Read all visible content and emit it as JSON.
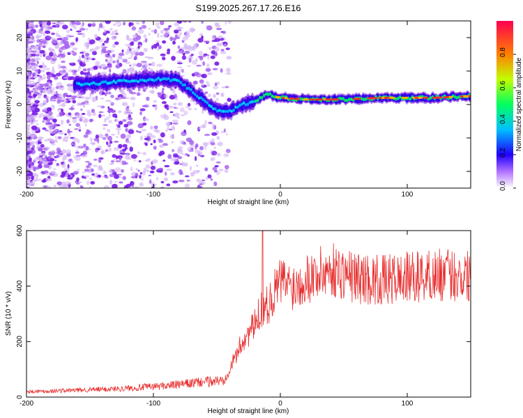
{
  "title": "S199.2025.267.17.26.E16",
  "chart_data": [
    {
      "type": "heatmap",
      "xlabel": "Height of straight line (km)",
      "ylabel": "Frequency (Hz)",
      "xlim": [
        -200,
        150
      ],
      "ylim": [
        -25,
        25
      ],
      "x_ticks": [
        -200,
        -100,
        0,
        100
      ],
      "y_ticks": [
        20,
        10,
        0,
        -10,
        -20
      ],
      "colorbar": {
        "label": "Normalized spectral amplitude",
        "range": [
          0,
          1
        ],
        "ticks": [
          "0.0",
          "0.2",
          "0.4",
          "0.6",
          "0.8"
        ],
        "tick_values": [
          0,
          0.2,
          0.4,
          0.6,
          0.8
        ]
      },
      "ridge_frequency": {
        "x": [
          -160,
          -140,
          -120,
          -100,
          -90,
          -80,
          -70,
          -60,
          -50,
          -40,
          -30,
          -20,
          -10,
          0,
          20,
          50,
          80,
          100,
          120,
          150
        ],
        "y": [
          6,
          6.5,
          7,
          7.5,
          7.5,
          7,
          4,
          1,
          -2,
          -2,
          0,
          1,
          3,
          2,
          1.5,
          1.5,
          2,
          2,
          2,
          2.5
        ]
      }
    },
    {
      "type": "line",
      "xlabel": "Height of straight line (km)",
      "ylabel": "SNR (10 * v/v)",
      "xlim": [
        -200,
        150
      ],
      "ylim": [
        0,
        600
      ],
      "x_ticks": [
        -200,
        -100,
        0,
        100
      ],
      "y_ticks": [
        0,
        200,
        400,
        600
      ],
      "series": [
        {
          "name": "SNR",
          "color": "#e83030",
          "x": [
            -200,
            -180,
            -160,
            -140,
            -120,
            -100,
            -80,
            -60,
            -45,
            -40,
            -30,
            -20,
            -15,
            -10,
            0,
            10,
            20,
            40,
            60,
            80,
            100,
            120,
            150
          ],
          "y": [
            20,
            22,
            25,
            28,
            32,
            38,
            45,
            55,
            60,
            100,
            200,
            260,
            320,
            330,
            420,
            400,
            430,
            460,
            430,
            420,
            430,
            440,
            440
          ]
        }
      ]
    }
  ]
}
